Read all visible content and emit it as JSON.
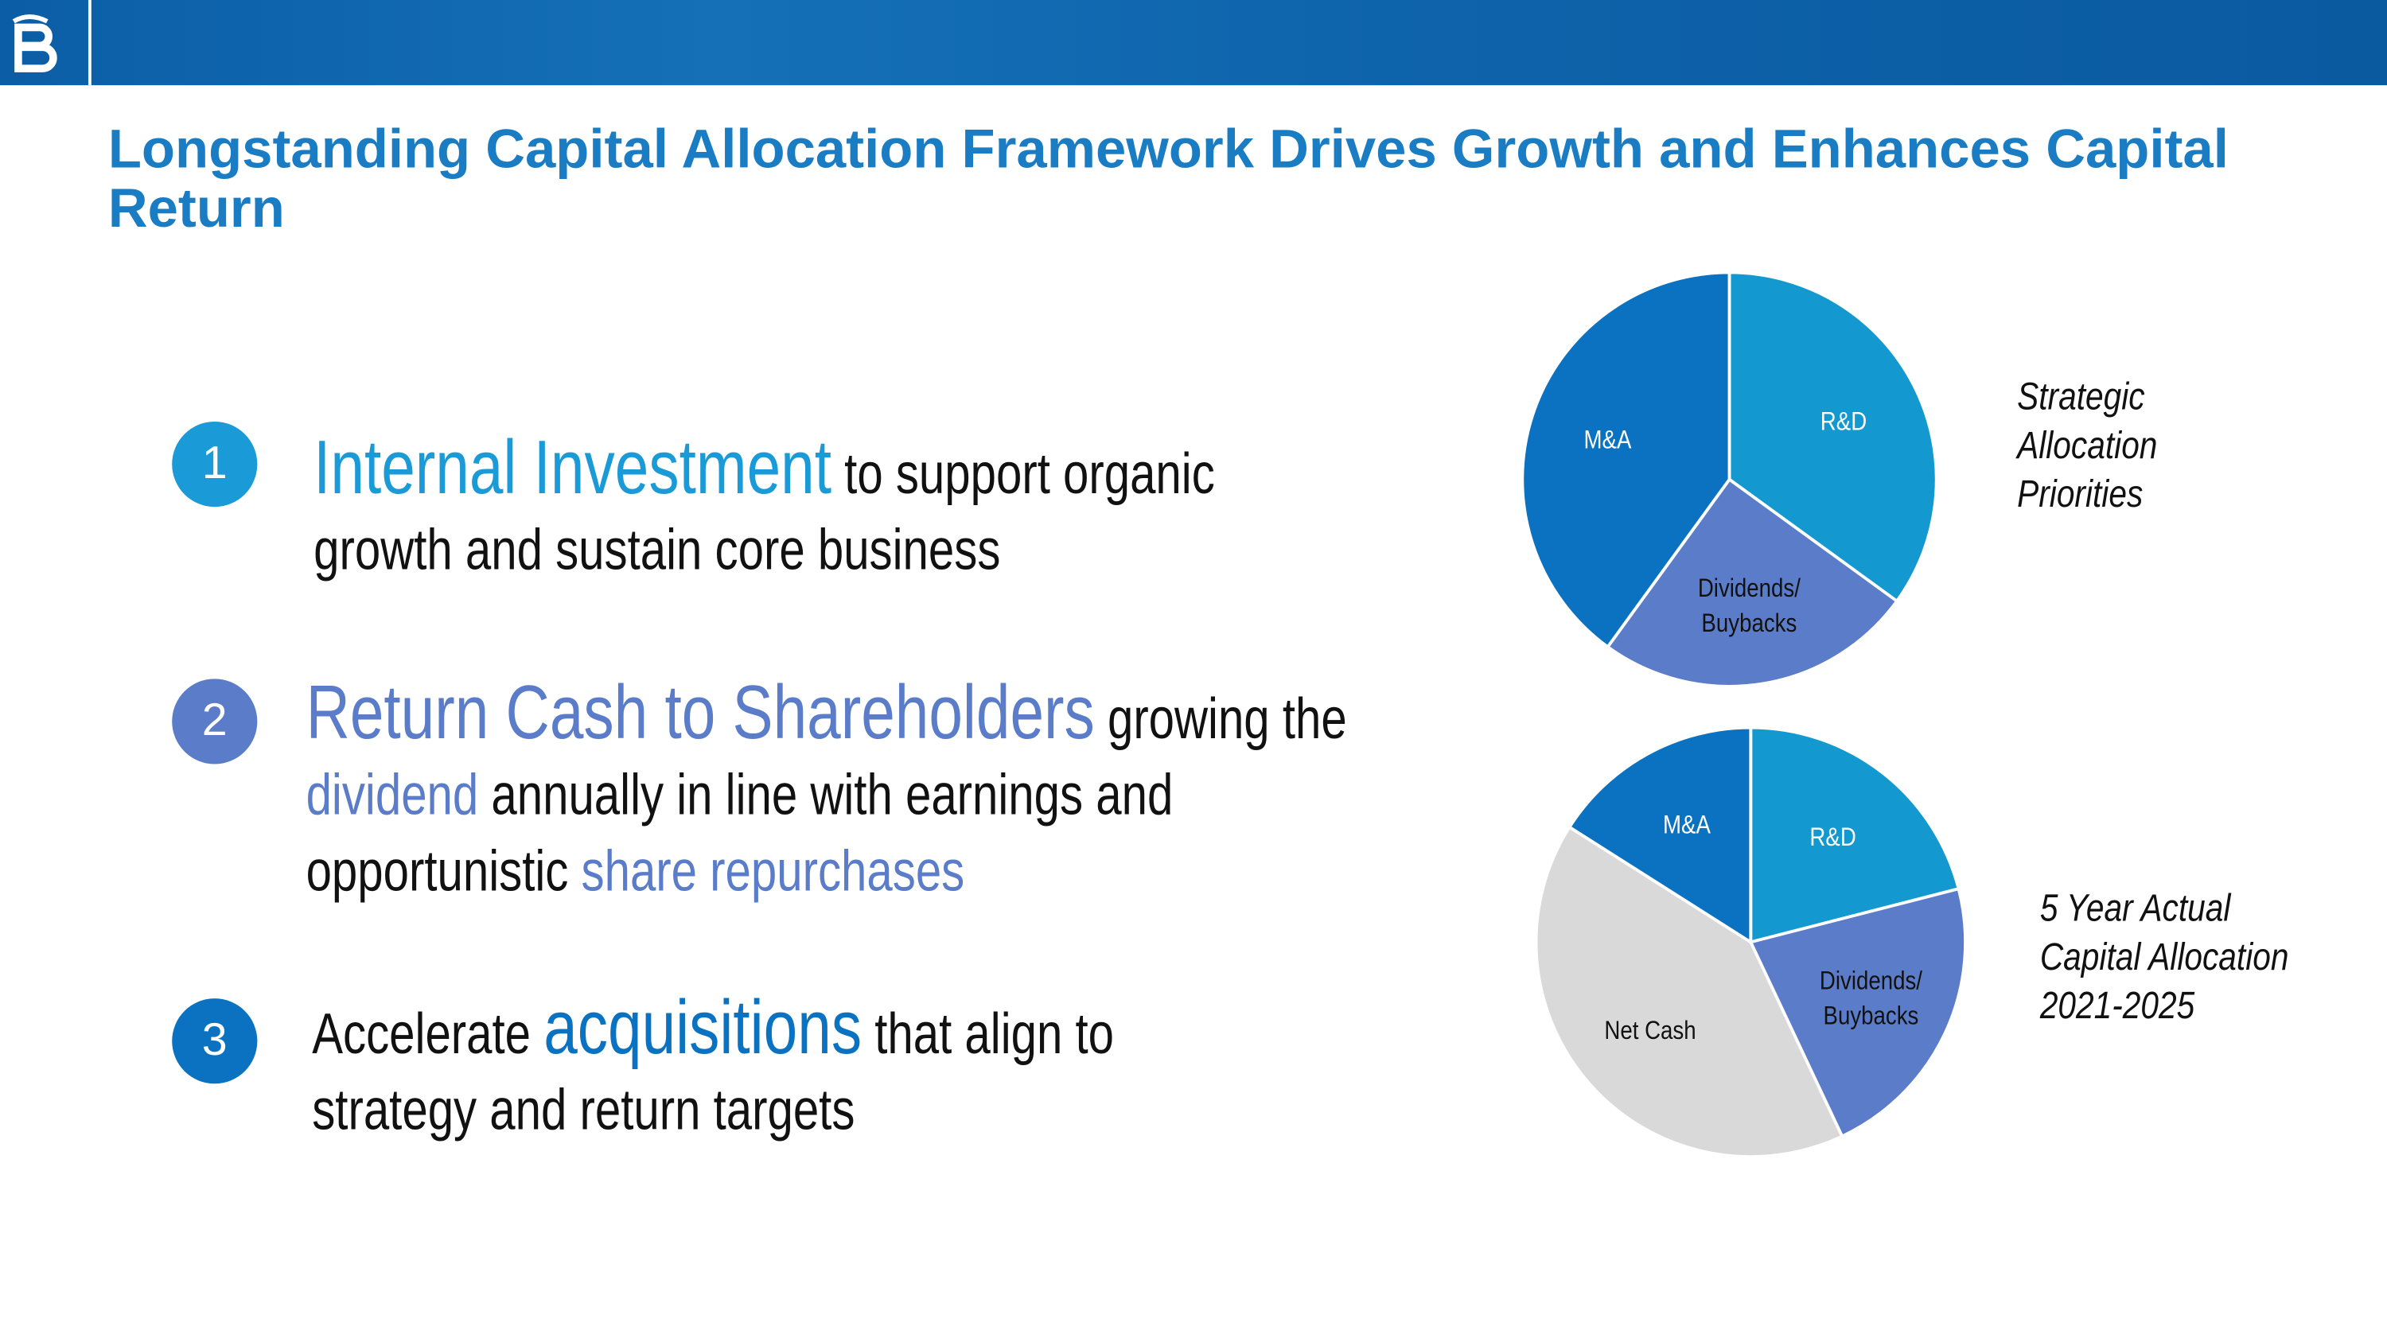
{
  "header": {
    "title": "Longstanding Capital Allocation Framework Drives Growth and Enhances Capital Return"
  },
  "items": [
    {
      "number": "1",
      "parts": [
        "Internal Investment",
        " to support organic",
        "growth and sustain core business"
      ]
    },
    {
      "number": "2",
      "parts": [
        "Return Cash to Shareholders",
        " growing the",
        "dividend",
        " annually in line with earnings and",
        "opportunistic ",
        "share repurchases"
      ]
    },
    {
      "number": "3",
      "parts": [
        "Accelerate ",
        "acquisitions",
        " that align to",
        "strategy and return targets"
      ]
    }
  ],
  "chart_data": [
    {
      "type": "pie",
      "title": "Strategic\nAllocation\nPriorities",
      "categories": [
        "R&D",
        "Dividends/\nBuybacks",
        "M&A"
      ],
      "values": [
        35,
        25,
        40
      ],
      "colors": [
        "#1498d0",
        "#5b7cc8",
        "#0a72c0"
      ],
      "label_colors": [
        "#ffffff",
        "#111111",
        "#ffffff"
      ]
    },
    {
      "type": "pie",
      "title": "5 Year Actual\nCapital Allocation\n2021-2025",
      "categories": [
        "R&D",
        "Dividends/\nBuybacks",
        "Net Cash",
        "M&A"
      ],
      "values": [
        21,
        22,
        41,
        16
      ],
      "colors": [
        "#1498d0",
        "#5b7cc8",
        "#d9d9d9",
        "#0a72c0"
      ],
      "label_colors": [
        "#ffffff",
        "#111111",
        "#111111",
        "#ffffff"
      ]
    }
  ]
}
